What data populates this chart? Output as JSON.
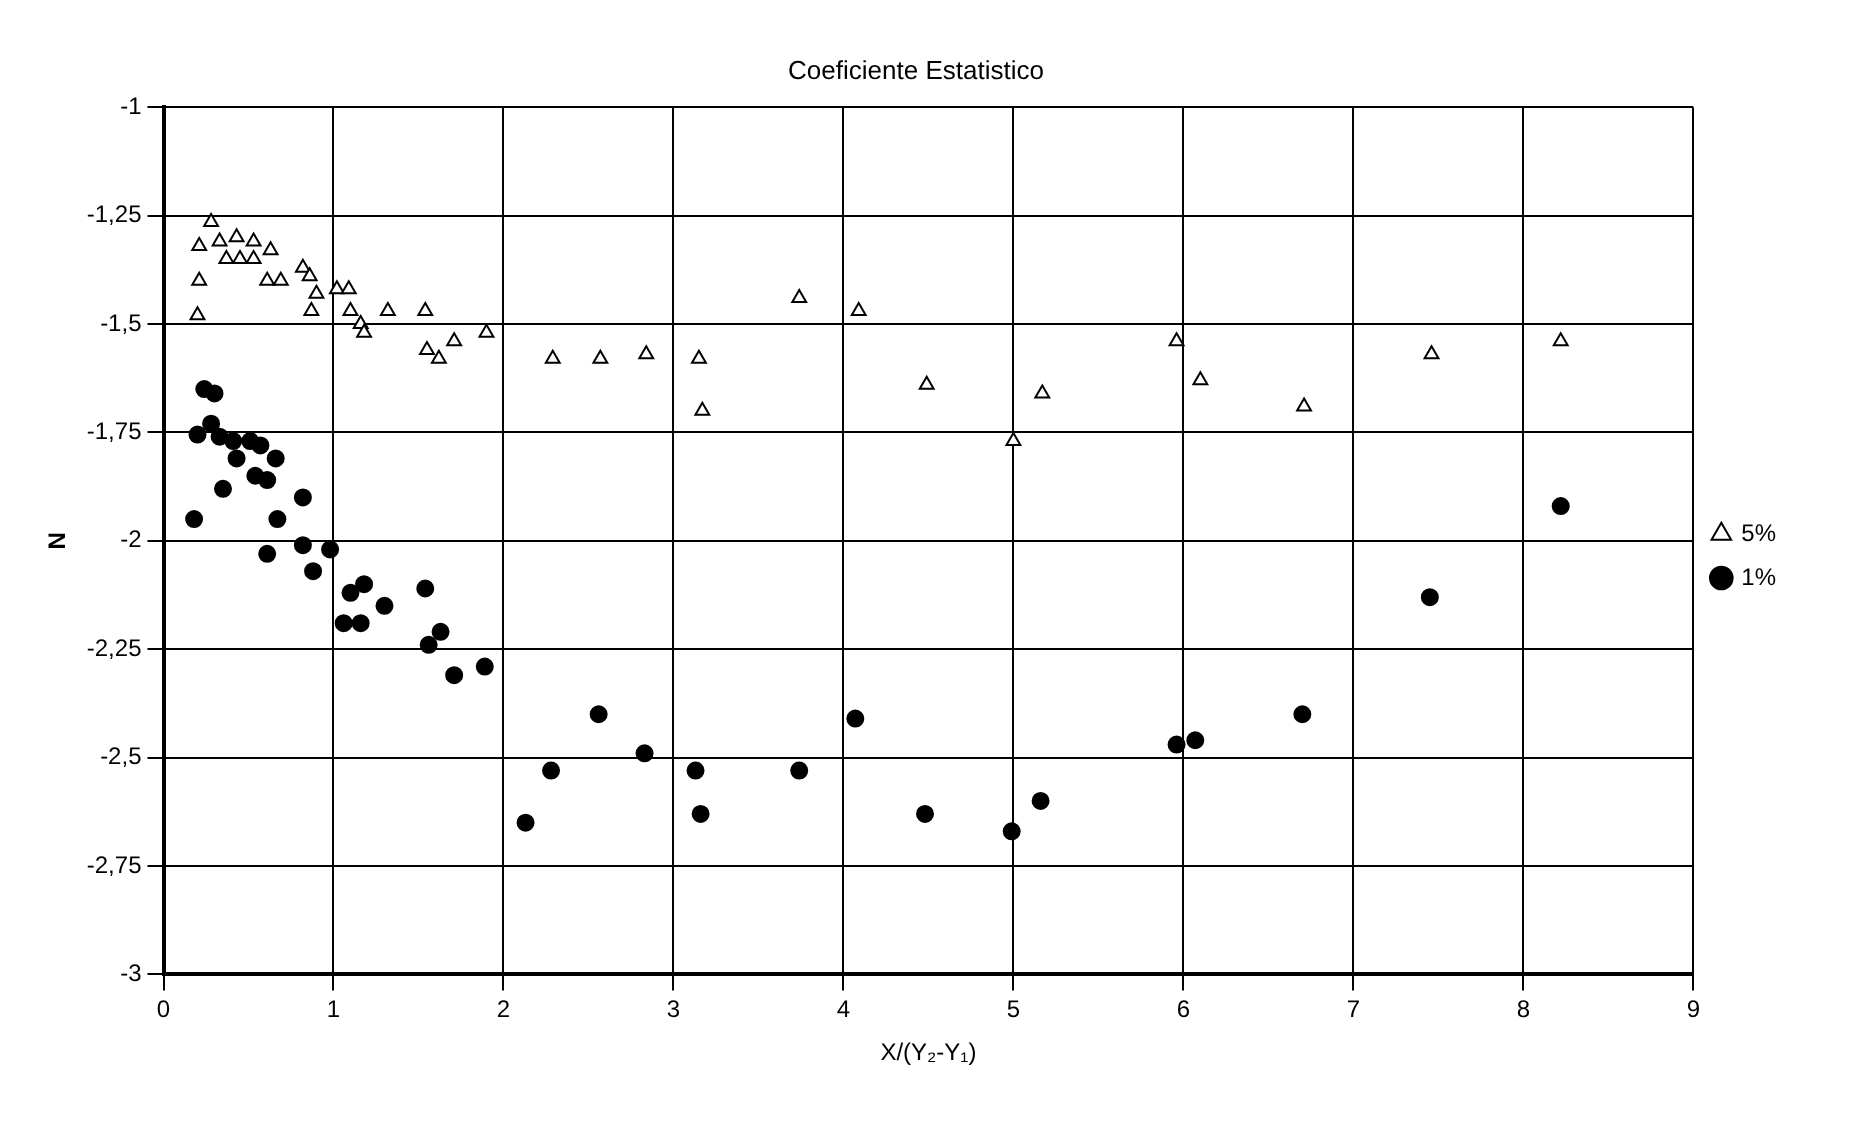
{
  "chart_data": {
    "type": "scatter",
    "title": "Coeficiente Estatistico",
    "xlabel": "X/(Y₂-Y₁)",
    "ylabel": "N",
    "xlim": [
      0,
      9
    ],
    "xticks": [
      0,
      1,
      2,
      3,
      4,
      5,
      6,
      7,
      8,
      9
    ],
    "ylim": [
      -3,
      -1
    ],
    "yticks": [
      {
        "value": -3,
        "label": "-3"
      },
      {
        "value": -2.75,
        "label": "-2,75"
      },
      {
        "value": -2.5,
        "label": "-2,5"
      },
      {
        "value": -2.25,
        "label": "-2,25"
      },
      {
        "value": -2,
        "label": "-2"
      },
      {
        "value": -1.75,
        "label": "-1,75"
      },
      {
        "value": -1.5,
        "label": "-1,5"
      },
      {
        "value": -1.25,
        "label": "-1,25"
      },
      {
        "value": -1,
        "label": "-1"
      }
    ],
    "grid": true,
    "legend": "right",
    "series": [
      {
        "name": "5%",
        "color": "#000000",
        "marker": "triangle",
        "x": [
          0.2,
          0.21,
          0.28,
          0.21,
          0.33,
          0.37,
          0.43,
          0.45,
          0.53,
          0.53,
          0.63,
          0.61,
          0.69,
          0.82,
          0.86,
          0.87,
          0.9,
          1.02,
          1.09,
          1.1,
          1.16,
          1.18,
          1.32,
          1.54,
          1.55,
          1.62,
          1.71,
          1.9,
          2.29,
          2.57,
          2.84,
          3.15,
          3.17,
          3.74,
          4.09,
          4.49,
          5.0,
          5.17,
          5.96,
          6.1,
          6.71,
          7.46,
          8.22
        ],
        "values": [
          -1.48,
          -1.4,
          -1.265,
          -1.32,
          -1.31,
          -1.35,
          -1.3,
          -1.35,
          -1.31,
          -1.35,
          -1.33,
          -1.4,
          -1.4,
          -1.37,
          -1.39,
          -1.47,
          -1.43,
          -1.42,
          -1.42,
          -1.47,
          -1.5,
          -1.52,
          -1.47,
          -1.47,
          -1.56,
          -1.58,
          -1.54,
          -1.52,
          -1.58,
          -1.58,
          -1.57,
          -1.58,
          -1.7,
          -1.44,
          -1.47,
          -1.64,
          -1.77,
          -1.66,
          -1.54,
          -1.63,
          -1.69,
          -1.57,
          -1.54
        ]
      },
      {
        "name": "1%",
        "color": "#000000",
        "marker": "circle",
        "x": [
          0.24,
          0.3,
          0.2,
          0.28,
          0.33,
          0.41,
          0.43,
          0.51,
          0.54,
          0.57,
          0.61,
          0.66,
          0.35,
          0.18,
          0.67,
          0.82,
          0.61,
          0.82,
          0.88,
          0.98,
          1.1,
          1.18,
          1.06,
          1.16,
          1.3,
          1.54,
          1.56,
          1.63,
          1.71,
          1.89,
          2.13,
          2.28,
          2.56,
          2.83,
          3.13,
          3.16,
          3.74,
          4.07,
          4.48,
          4.99,
          5.16,
          5.96,
          6.07,
          6.7,
          7.45,
          8.22
        ],
        "values": [
          -1.65,
          -1.66,
          -1.755,
          -1.73,
          -1.76,
          -1.77,
          -1.81,
          -1.77,
          -1.85,
          -1.78,
          -1.86,
          -1.81,
          -1.88,
          -1.95,
          -1.95,
          -1.9,
          -2.03,
          -2.01,
          -2.07,
          -2.02,
          -2.12,
          -2.1,
          -2.19,
          -2.19,
          -2.15,
          -2.11,
          -2.24,
          -2.21,
          -2.31,
          -2.29,
          -2.65,
          -2.53,
          -2.4,
          -2.49,
          -2.53,
          -2.63,
          -2.53,
          -2.41,
          -2.63,
          -2.67,
          -2.6,
          -2.47,
          -2.46,
          -2.4,
          -2.13,
          -1.92
        ]
      }
    ]
  }
}
